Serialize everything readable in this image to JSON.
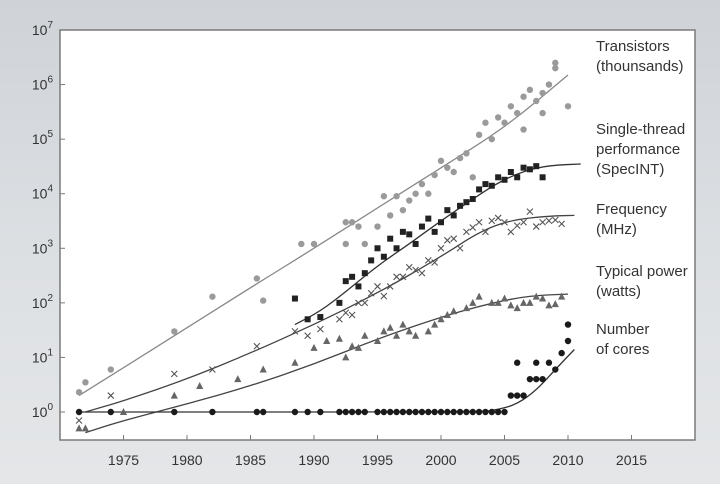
{
  "chart_data": {
    "type": "scatter",
    "title": "",
    "xlabel": "",
    "ylabel": "",
    "xlim": [
      1970,
      2020
    ],
    "ylim": [
      1,
      10000000
    ],
    "y_scale": "log",
    "grid": false,
    "x_ticks": [
      "1975",
      "1980",
      "1985",
      "1990",
      "1995",
      "2000",
      "2005",
      "2010",
      "2015"
    ],
    "y_ticks": [
      {
        "base": "10",
        "exp": "0"
      },
      {
        "base": "10",
        "exp": "1"
      },
      {
        "base": "10",
        "exp": "2"
      },
      {
        "base": "10",
        "exp": "3"
      },
      {
        "base": "10",
        "exp": "4"
      },
      {
        "base": "10",
        "exp": "5"
      },
      {
        "base": "10",
        "exp": "6"
      },
      {
        "base": "10",
        "exp": "7"
      }
    ],
    "series": [
      {
        "name": "Transistors (thounsands)",
        "label_lines": [
          "Transistors",
          "(thounsands)"
        ],
        "marker": "circle",
        "color": "#9a9a9a",
        "points": [
          [
            1971.5,
            2.3
          ],
          [
            1972,
            3.5
          ],
          [
            1974,
            6
          ],
          [
            1979,
            30
          ],
          [
            1982,
            130
          ],
          [
            1985.5,
            280
          ],
          [
            1986,
            110
          ],
          [
            1989,
            1200
          ],
          [
            1990,
            1200
          ],
          [
            1992.5,
            1200
          ],
          [
            1992.5,
            3000
          ],
          [
            1993,
            3000
          ],
          [
            1993.5,
            2500
          ],
          [
            1994,
            1200
          ],
          [
            1995,
            2500
          ],
          [
            1995.5,
            9000
          ],
          [
            1996,
            4000
          ],
          [
            1996.5,
            9000
          ],
          [
            1997,
            5000
          ],
          [
            1997.5,
            7500
          ],
          [
            1998,
            10000
          ],
          [
            1998.5,
            15000
          ],
          [
            1999,
            10000
          ],
          [
            1999.5,
            22000
          ],
          [
            2000,
            40000
          ],
          [
            2000.5,
            30000
          ],
          [
            2001,
            25000
          ],
          [
            2001.5,
            45000
          ],
          [
            2002,
            55000
          ],
          [
            2002.5,
            20000
          ],
          [
            2003,
            120000
          ],
          [
            2003.5,
            200000
          ],
          [
            2004,
            100000
          ],
          [
            2004.5,
            250000
          ],
          [
            2005,
            200000
          ],
          [
            2005.5,
            400000
          ],
          [
            2006,
            300000
          ],
          [
            2006.5,
            600000
          ],
          [
            2007,
            800000
          ],
          [
            2007.5,
            500000
          ],
          [
            2008,
            700000
          ],
          [
            2008.5,
            1000000
          ],
          [
            2009,
            2000000
          ],
          [
            2009,
            2500000
          ],
          [
            2010,
            400000
          ],
          [
            2008,
            300000
          ],
          [
            2006.5,
            150000
          ]
        ]
      },
      {
        "name": "Single-thread performance (SpecINT)",
        "label_lines": [
          "Single-thread",
          "performance",
          "(SpecINT)"
        ],
        "marker": "square",
        "color": "#222222",
        "points": [
          [
            1988.5,
            120
          ],
          [
            1989.5,
            50
          ],
          [
            1990.5,
            55
          ],
          [
            1992,
            100
          ],
          [
            1992.5,
            250
          ],
          [
            1993,
            300
          ],
          [
            1993.5,
            200
          ],
          [
            1994,
            350
          ],
          [
            1994.5,
            600
          ],
          [
            1995,
            1000
          ],
          [
            1995.5,
            700
          ],
          [
            1996,
            1500
          ],
          [
            1996.5,
            1000
          ],
          [
            1997,
            2000
          ],
          [
            1997.5,
            1800
          ],
          [
            1998,
            1200
          ],
          [
            1998.5,
            2500
          ],
          [
            1999,
            3500
          ],
          [
            1999.5,
            2000
          ],
          [
            2000,
            3000
          ],
          [
            2000.5,
            5000
          ],
          [
            2001,
            4000
          ],
          [
            2001.5,
            6000
          ],
          [
            2002,
            7000
          ],
          [
            2002.5,
            8000
          ],
          [
            2003,
            12000
          ],
          [
            2003.5,
            15000
          ],
          [
            2004,
            14000
          ],
          [
            2004.5,
            20000
          ],
          [
            2005,
            18000
          ],
          [
            2005.5,
            25000
          ],
          [
            2006,
            20000
          ],
          [
            2006.5,
            30000
          ],
          [
            2007,
            28000
          ],
          [
            2007.5,
            32000
          ],
          [
            2008,
            20000
          ]
        ]
      },
      {
        "name": "Frequency (MHz)",
        "label_lines": [
          "Frequency",
          "(MHz)"
        ],
        "marker": "x",
        "color": "#555555",
        "points": [
          [
            1971.5,
            0.7
          ],
          [
            1974,
            2
          ],
          [
            1979,
            5
          ],
          [
            1982,
            6
          ],
          [
            1985.5,
            16
          ],
          [
            1988.5,
            30
          ],
          [
            1989.5,
            25
          ],
          [
            1990.5,
            33
          ],
          [
            1992,
            50
          ],
          [
            1992.5,
            66
          ],
          [
            1993,
            60
          ],
          [
            1993.5,
            100
          ],
          [
            1994,
            100
          ],
          [
            1994.5,
            150
          ],
          [
            1995,
            200
          ],
          [
            1995.5,
            133
          ],
          [
            1996,
            200
          ],
          [
            1996.5,
            300
          ],
          [
            1997,
            300
          ],
          [
            1997.5,
            450
          ],
          [
            1998,
            400
          ],
          [
            1998.5,
            350
          ],
          [
            1999,
            600
          ],
          [
            1999.5,
            550
          ],
          [
            2000,
            1000
          ],
          [
            2000.5,
            1400
          ],
          [
            2001,
            1500
          ],
          [
            2001.5,
            1000
          ],
          [
            2002,
            2000
          ],
          [
            2002.5,
            2400
          ],
          [
            2003,
            3000
          ],
          [
            2003.5,
            2000
          ],
          [
            2004,
            3200
          ],
          [
            2004.5,
            3600
          ],
          [
            2005,
            3000
          ],
          [
            2005.5,
            2000
          ],
          [
            2006,
            2600
          ],
          [
            2006.5,
            3000
          ],
          [
            2007,
            4700
          ],
          [
            2007.5,
            2500
          ],
          [
            2008,
            3000
          ],
          [
            2008.5,
            3200
          ],
          [
            2009,
            3300
          ],
          [
            2009.5,
            2800
          ]
        ]
      },
      {
        "name": "Typical power (watts)",
        "label_lines": [
          "Typical power",
          "(watts)"
        ],
        "marker": "triangle",
        "color": "#666666",
        "points": [
          [
            1971.5,
            0.5
          ],
          [
            1972,
            0.5
          ],
          [
            1975,
            1
          ],
          [
            1979,
            2
          ],
          [
            1981,
            3
          ],
          [
            1984,
            4
          ],
          [
            1986,
            6
          ],
          [
            1988.5,
            8
          ],
          [
            1990,
            15
          ],
          [
            1991,
            20
          ],
          [
            1992,
            22
          ],
          [
            1992.5,
            10
          ],
          [
            1993,
            16
          ],
          [
            1993.5,
            15
          ],
          [
            1994,
            25
          ],
          [
            1995,
            20
          ],
          [
            1995.5,
            30
          ],
          [
            1996,
            35
          ],
          [
            1996.5,
            25
          ],
          [
            1997,
            40
          ],
          [
            1997.5,
            30
          ],
          [
            1998,
            25
          ],
          [
            1999,
            30
          ],
          [
            1999.5,
            40
          ],
          [
            2000,
            50
          ],
          [
            2000.5,
            60
          ],
          [
            2001,
            70
          ],
          [
            2002,
            80
          ],
          [
            2002.5,
            100
          ],
          [
            2003,
            130
          ],
          [
            2004,
            100
          ],
          [
            2004.5,
            100
          ],
          [
            2005,
            120
          ],
          [
            2005.5,
            90
          ],
          [
            2006,
            80
          ],
          [
            2006.5,
            100
          ],
          [
            2007,
            100
          ],
          [
            2007.5,
            130
          ],
          [
            2008,
            120
          ],
          [
            2008.5,
            90
          ],
          [
            2009,
            95
          ],
          [
            2009.5,
            130
          ]
        ]
      },
      {
        "name": "Number of cores",
        "label_lines": [
          "Number",
          "of cores"
        ],
        "marker": "circle",
        "color": "#1a1a1a",
        "points": [
          [
            1971.5,
            1
          ],
          [
            1974,
            1
          ],
          [
            1979,
            1
          ],
          [
            1982,
            1
          ],
          [
            1985.5,
            1
          ],
          [
            1986,
            1
          ],
          [
            1988.5,
            1
          ],
          [
            1989.5,
            1
          ],
          [
            1990.5,
            1
          ],
          [
            1992,
            1
          ],
          [
            1992.5,
            1
          ],
          [
            1993,
            1
          ],
          [
            1993.5,
            1
          ],
          [
            1994,
            1
          ],
          [
            1995,
            1
          ],
          [
            1995.5,
            1
          ],
          [
            1996,
            1
          ],
          [
            1996.5,
            1
          ],
          [
            1997,
            1
          ],
          [
            1997.5,
            1
          ],
          [
            1998,
            1
          ],
          [
            1998.5,
            1
          ],
          [
            1999,
            1
          ],
          [
            1999.5,
            1
          ],
          [
            2000,
            1
          ],
          [
            2000.5,
            1
          ],
          [
            2001,
            1
          ],
          [
            2001.5,
            1
          ],
          [
            2002,
            1
          ],
          [
            2002.5,
            1
          ],
          [
            2003,
            1
          ],
          [
            2003.5,
            1
          ],
          [
            2004,
            1
          ],
          [
            2004.5,
            1
          ],
          [
            2005,
            1
          ],
          [
            2005.5,
            2
          ],
          [
            2006,
            2
          ],
          [
            2006.5,
            2
          ],
          [
            2007,
            4
          ],
          [
            2007.5,
            4
          ],
          [
            2008,
            4
          ],
          [
            2008.5,
            8
          ],
          [
            2009,
            6
          ],
          [
            2009.5,
            12
          ],
          [
            2010,
            20
          ],
          [
            2010,
            40
          ],
          [
            2007.5,
            8
          ],
          [
            2006,
            8
          ]
        ]
      }
    ],
    "trend_lines": [
      {
        "series": "Transistors (thounsands)",
        "points": [
          [
            1971.5,
            2
          ],
          [
            1975,
            6.5
          ],
          [
            1980,
            35
          ],
          [
            1985,
            190
          ],
          [
            1990,
            1000
          ],
          [
            1995,
            5500
          ],
          [
            2000,
            30000
          ],
          [
            2005,
            160000
          ],
          [
            2010,
            1500000
          ]
        ]
      },
      {
        "series": "Single-thread performance (SpecINT)",
        "points": [
          [
            1988.5,
            40
          ],
          [
            1990.5,
            70
          ],
          [
            1992.5,
            160
          ],
          [
            1995,
            480
          ],
          [
            1997.5,
            1200
          ],
          [
            2000,
            3200
          ],
          [
            2002.5,
            8000
          ],
          [
            2004.5,
            16000
          ],
          [
            2006.5,
            26000
          ],
          [
            2008.5,
            33000
          ],
          [
            2011,
            35000
          ]
        ]
      },
      {
        "series": "Frequency (MHz)",
        "points": [
          [
            1972,
            1
          ],
          [
            1975,
            1.6
          ],
          [
            1980,
            4
          ],
          [
            1985,
            12
          ],
          [
            1990,
            40
          ],
          [
            1995,
            150
          ],
          [
            2000,
            700
          ],
          [
            2003,
            2000
          ],
          [
            2005.5,
            3300
          ],
          [
            2008.5,
            3900
          ],
          [
            2010.5,
            4000
          ]
        ]
      },
      {
        "series": "Typical power (watts)",
        "points": [
          [
            1972,
            0.42
          ],
          [
            1975,
            0.7
          ],
          [
            1980,
            1.4
          ],
          [
            1985,
            3
          ],
          [
            1990,
            7.5
          ],
          [
            1995,
            22
          ],
          [
            2000,
            55
          ],
          [
            2004,
            100
          ],
          [
            2007,
            135
          ],
          [
            2010,
            145
          ]
        ]
      },
      {
        "series": "Number of cores",
        "points": [
          [
            1971.5,
            1
          ],
          [
            2003,
            1
          ],
          [
            2004.5,
            1.1
          ],
          [
            2006,
            1.4
          ],
          [
            2007.5,
            2.5
          ],
          [
            2009,
            6
          ],
          [
            2010.5,
            14
          ]
        ]
      }
    ]
  }
}
